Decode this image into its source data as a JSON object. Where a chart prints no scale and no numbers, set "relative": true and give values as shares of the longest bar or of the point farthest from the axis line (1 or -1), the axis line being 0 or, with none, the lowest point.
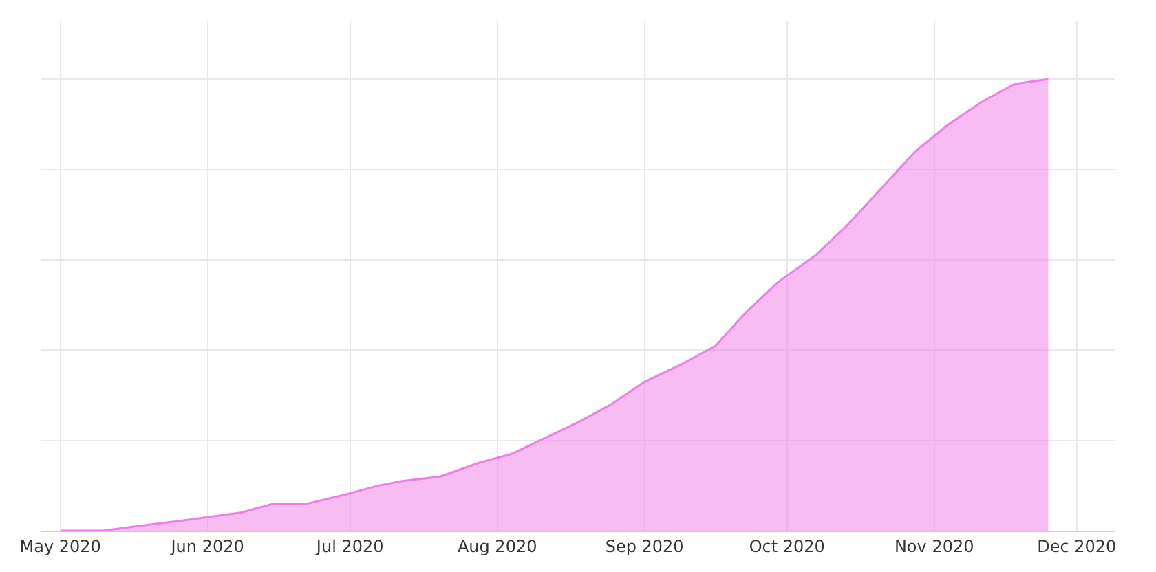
{
  "chart_data": {
    "type": "area",
    "relative": true,
    "grid": true,
    "x": [
      "2020-05-01",
      "2020-05-10",
      "2020-05-17",
      "2020-05-25",
      "2020-06-01",
      "2020-06-08",
      "2020-06-15",
      "2020-06-22",
      "2020-06-30",
      "2020-07-07",
      "2020-07-12",
      "2020-07-20",
      "2020-07-28",
      "2020-08-04",
      "2020-08-10",
      "2020-08-18",
      "2020-08-25",
      "2020-09-01",
      "2020-09-09",
      "2020-09-16",
      "2020-09-22",
      "2020-09-29",
      "2020-10-07",
      "2020-10-14",
      "2020-10-21",
      "2020-10-28",
      "2020-11-04",
      "2020-11-11",
      "2020-11-18",
      "2020-11-25"
    ],
    "series": [
      {
        "color": "#f07ce8",
        "values": [
          0,
          0,
          0.01,
          0.02,
          0.03,
          0.04,
          0.06,
          0.06,
          0.08,
          0.1,
          0.11,
          0.12,
          0.15,
          0.17,
          0.2,
          0.24,
          0.28,
          0.33,
          0.37,
          0.41,
          0.48,
          0.55,
          0.61,
          0.68,
          0.76,
          0.84,
          0.9,
          0.95,
          0.99,
          1
        ]
      }
    ],
    "xlim": [
      "2020-04-27",
      "2020-12-09"
    ],
    "xticks": [
      {
        "value": "2020-05-01",
        "label": "May 2020"
      },
      {
        "value": "2020-06-01",
        "label": "Jun 2020"
      },
      {
        "value": "2020-07-01",
        "label": "Jul 2020"
      },
      {
        "value": "2020-08-01",
        "label": "Aug 2020"
      },
      {
        "value": "2020-09-01",
        "label": "Sep 2020"
      },
      {
        "value": "2020-10-01",
        "label": "Oct 2020"
      },
      {
        "value": "2020-11-01",
        "label": "Nov 2020"
      },
      {
        "value": "2020-12-01",
        "label": "Dec 2020"
      }
    ]
  }
}
